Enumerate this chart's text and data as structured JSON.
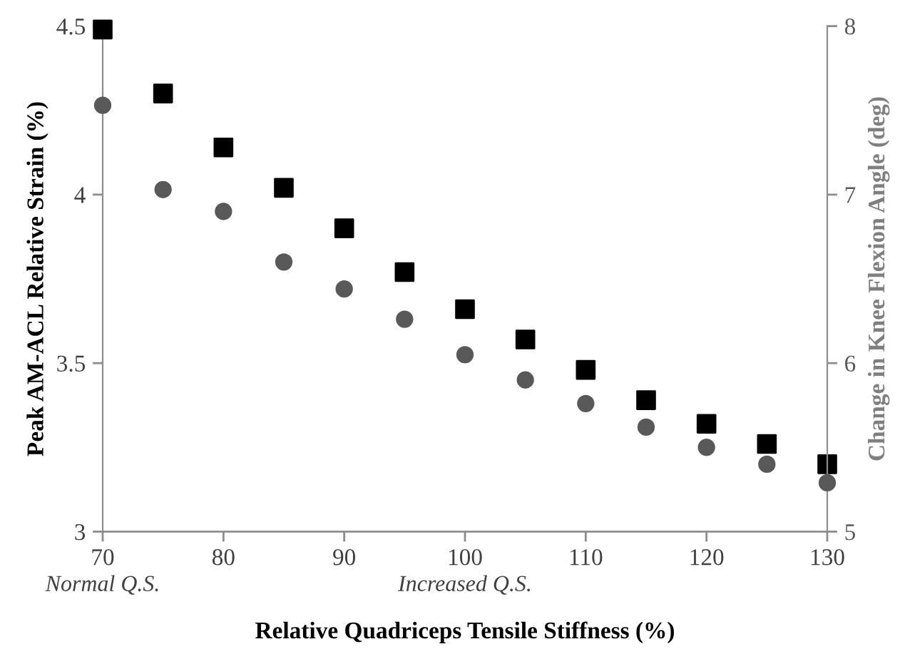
{
  "chart_data": {
    "type": "scatter",
    "xlabel": "Relative Quadriceps Tensile Stiffness (%)",
    "ylabel": "Peak AM-ACL Relative Strain (%)",
    "y2label": "Change in Knee Flexion Angle (deg)",
    "annotations": [
      "Normal Q.S.",
      "Increased Q.S."
    ],
    "x": [
      70,
      75,
      80,
      85,
      90,
      95,
      100,
      105,
      110,
      115,
      120,
      125,
      130
    ],
    "series": [
      {
        "color": "#000000",
        "marker": "square",
        "values": [
          4.49,
          4.3,
          4.14,
          4.02,
          3.9,
          3.77,
          3.66,
          3.57,
          3.48,
          3.39,
          3.32,
          3.26,
          3.2
        ]
      },
      {
        "color": "#595959",
        "marker": "circle",
        "axis": "y2",
        "values": [
          7.53,
          7.03,
          6.9,
          6.6,
          6.44,
          6.26,
          6.05,
          5.9,
          5.76,
          5.62,
          5.5,
          5.4,
          5.29
        ]
      }
    ],
    "xlim": [
      70,
      130
    ],
    "xticks": [
      70,
      80,
      90,
      100,
      110,
      120,
      130
    ],
    "ylim": [
      3,
      4.5
    ],
    "yticks": [
      3,
      3.5,
      4,
      4.5
    ],
    "y2lim": [
      5,
      8
    ],
    "y2ticks": [
      5,
      6,
      7,
      8
    ],
    "grid": false,
    "legend": false
  }
}
